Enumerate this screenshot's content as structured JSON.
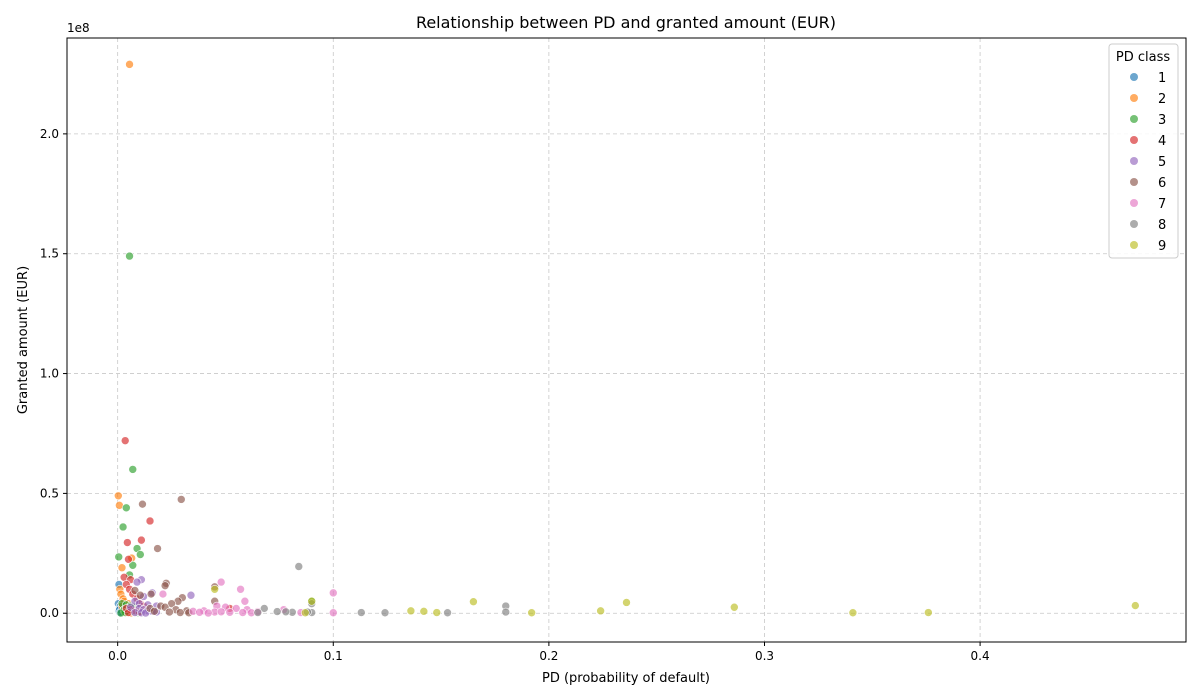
{
  "chart_data": {
    "type": "scatter",
    "title": "Relationship between PD and granted amount (EUR)",
    "xlabel": "PD (probability of default)",
    "ylabel": "Granted amount (EUR)",
    "y_offset_label": "1e8",
    "xlim": [
      -0.0235,
      0.4955
    ],
    "ylim": [
      -12000000.0,
      240000000.0
    ],
    "x_ticks": [
      0.0,
      0.1,
      0.2,
      0.3,
      0.4
    ],
    "x_tick_labels": [
      "0.0",
      "0.1",
      "0.2",
      "0.3",
      "0.4"
    ],
    "y_ticks": [
      0,
      50000000,
      100000000,
      150000000,
      200000000
    ],
    "y_tick_labels": [
      "0.0",
      "0.5",
      "1.0",
      "1.5",
      "2.0"
    ],
    "grid": true,
    "legend_title": "PD class",
    "legend_position": "top-right",
    "series": [
      {
        "name": "1",
        "color": "#1f77b4",
        "points": [
          [
            0.0003,
            4000000
          ],
          [
            0.0005,
            1000000
          ],
          [
            0.0008,
            2000000
          ],
          [
            0.001,
            500000
          ],
          [
            0.0012,
            3000000
          ],
          [
            0.0015,
            800000
          ],
          [
            0.0006,
            12000000
          ],
          [
            0.0009,
            1500000
          ],
          [
            0.0011,
            200000
          ]
        ]
      },
      {
        "name": "2",
        "color": "#ff7f0e",
        "points": [
          [
            0.0055,
            229000000
          ],
          [
            0.0003,
            49000000
          ],
          [
            0.0008,
            45000000
          ],
          [
            0.0065,
            23000000
          ],
          [
            0.002,
            19000000
          ],
          [
            0.001,
            10000000
          ],
          [
            0.0015,
            8000000
          ],
          [
            0.0025,
            6000000
          ],
          [
            0.003,
            5000000
          ],
          [
            0.005,
            4000000
          ],
          [
            0.002,
            3000000
          ],
          [
            0.004,
            2500000
          ],
          [
            0.006,
            2000000
          ],
          [
            0.007,
            1500000
          ],
          [
            0.003,
            1000000
          ],
          [
            0.005,
            700000
          ],
          [
            0.0075,
            400000
          ],
          [
            0.004,
            200000
          ],
          [
            0.006,
            100000
          ]
        ]
      },
      {
        "name": "3",
        "color": "#2ca02c",
        "points": [
          [
            0.0055,
            149000000
          ],
          [
            0.007,
            60000000
          ],
          [
            0.004,
            44000000
          ],
          [
            0.0025,
            36000000
          ],
          [
            0.009,
            27000000
          ],
          [
            0.0105,
            24500000
          ],
          [
            0.0005,
            23500000
          ],
          [
            0.007,
            20000000
          ],
          [
            0.0055,
            16000000
          ],
          [
            0.09,
            5000000
          ],
          [
            0.002,
            4000000
          ],
          [
            0.004,
            3500000
          ],
          [
            0.006,
            3000000
          ],
          [
            0.008,
            2500000
          ],
          [
            0.01,
            2000000
          ],
          [
            0.003,
            1500000
          ],
          [
            0.005,
            1000000
          ],
          [
            0.007,
            800000
          ],
          [
            0.009,
            500000
          ],
          [
            0.0035,
            300000
          ],
          [
            0.0015,
            100000
          ],
          [
            0.0095,
            200000
          ]
        ]
      },
      {
        "name": "4",
        "color": "#d62728",
        "points": [
          [
            0.0035,
            72000000
          ],
          [
            0.015,
            38500000
          ],
          [
            0.011,
            30500000
          ],
          [
            0.0045,
            29500000
          ],
          [
            0.005,
            22500000
          ],
          [
            0.003,
            15000000
          ],
          [
            0.006,
            14000000
          ],
          [
            0.004,
            12000000
          ],
          [
            0.0055,
            10000000
          ],
          [
            0.007,
            8000000
          ],
          [
            0.009,
            6000000
          ],
          [
            0.0105,
            4000000
          ],
          [
            0.012,
            3000000
          ],
          [
            0.004,
            2000000
          ],
          [
            0.006,
            1500000
          ],
          [
            0.008,
            1000000
          ],
          [
            0.01,
            500000
          ],
          [
            0.052,
            2000000
          ],
          [
            0.005,
            300000
          ]
        ]
      },
      {
        "name": "5",
        "color": "#9467bd",
        "points": [
          [
            0.011,
            14000000
          ],
          [
            0.009,
            13000000
          ],
          [
            0.034,
            7500000
          ],
          [
            0.012,
            7000000
          ],
          [
            0.016,
            8500000
          ],
          [
            0.008,
            5000000
          ],
          [
            0.01,
            4000000
          ],
          [
            0.014,
            3500000
          ],
          [
            0.018,
            3000000
          ],
          [
            0.006,
            2500000
          ],
          [
            0.01,
            2000000
          ],
          [
            0.012,
            1500000
          ],
          [
            0.014,
            1000000
          ],
          [
            0.016,
            800000
          ],
          [
            0.018,
            500000
          ],
          [
            0.008,
            300000
          ],
          [
            0.011,
            200000
          ],
          [
            0.013,
            100000
          ]
        ]
      },
      {
        "name": "6",
        "color": "#8c564b",
        "points": [
          [
            0.0295,
            47500000
          ],
          [
            0.0115,
            45500000
          ],
          [
            0.0185,
            27000000
          ],
          [
            0.0225,
            12500000
          ],
          [
            0.022,
            11500000
          ],
          [
            0.045,
            11000000
          ],
          [
            0.008,
            9500000
          ],
          [
            0.0155,
            8000000
          ],
          [
            0.0105,
            7500000
          ],
          [
            0.03,
            6500000
          ],
          [
            0.028,
            5000000
          ],
          [
            0.045,
            5000000
          ],
          [
            0.025,
            4000000
          ],
          [
            0.02,
            3000000
          ],
          [
            0.022,
            2500000
          ],
          [
            0.015,
            2000000
          ],
          [
            0.027,
            1500000
          ],
          [
            0.032,
            1000000
          ],
          [
            0.017,
            800000
          ],
          [
            0.024,
            500000
          ],
          [
            0.029,
            300000
          ],
          [
            0.033,
            200000
          ]
        ]
      },
      {
        "name": "7",
        "color": "#e377c2",
        "points": [
          [
            0.048,
            13000000
          ],
          [
            0.057,
            10000000
          ],
          [
            0.1,
            8500000
          ],
          [
            0.021,
            8000000
          ],
          [
            0.059,
            5000000
          ],
          [
            0.046,
            3000000
          ],
          [
            0.05,
            2500000
          ],
          [
            0.055,
            2000000
          ],
          [
            0.06,
            1500000
          ],
          [
            0.04,
            1000000
          ],
          [
            0.035,
            800000
          ],
          [
            0.065,
            700000
          ],
          [
            0.045,
            500000
          ],
          [
            0.052,
            400000
          ],
          [
            0.058,
            300000
          ],
          [
            0.062,
            200000
          ],
          [
            0.077,
            1500000
          ],
          [
            0.085,
            300000
          ],
          [
            0.1,
            200000
          ],
          [
            0.042,
            100000
          ],
          [
            0.038,
            400000
          ],
          [
            0.048,
            600000
          ]
        ]
      },
      {
        "name": "8",
        "color": "#7f7f7f",
        "points": [
          [
            0.084,
            19500000
          ],
          [
            0.18,
            3000000
          ],
          [
            0.09,
            4000000
          ],
          [
            0.068,
            2000000
          ],
          [
            0.074,
            700000
          ],
          [
            0.081,
            400000
          ],
          [
            0.09,
            300000
          ],
          [
            0.113,
            300000
          ],
          [
            0.124,
            200000
          ],
          [
            0.153,
            200000
          ],
          [
            0.18,
            500000
          ],
          [
            0.065,
            300000
          ],
          [
            0.078,
            600000
          ],
          [
            0.088,
            500000
          ]
        ]
      },
      {
        "name": "9",
        "color": "#bcbd22",
        "points": [
          [
            0.472,
            3200000
          ],
          [
            0.286,
            2500000
          ],
          [
            0.236,
            4500000
          ],
          [
            0.165,
            4800000
          ],
          [
            0.224,
            1000000
          ],
          [
            0.136,
            1000000
          ],
          [
            0.142,
            800000
          ],
          [
            0.148,
            300000
          ],
          [
            0.192,
            200000
          ],
          [
            0.341,
            200000
          ],
          [
            0.376,
            300000
          ],
          [
            0.09,
            5000000
          ],
          [
            0.087,
            200000
          ],
          [
            0.045,
            10000000
          ]
        ]
      }
    ]
  }
}
